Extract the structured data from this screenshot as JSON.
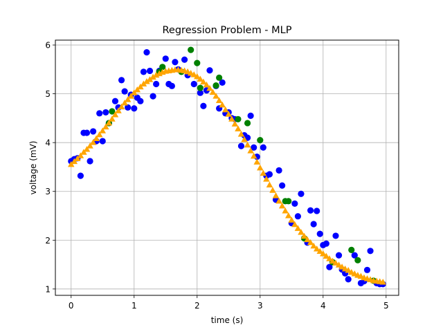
{
  "chart_data": {
    "type": "scatter",
    "title": "Regression Problem - MLP",
    "xlabel": "time (s)",
    "ylabel": "voltage (mV)",
    "xlim": [
      -0.25,
      5.2
    ],
    "ylim": [
      0.87,
      6.1
    ],
    "xticks": [
      "0",
      "1",
      "2",
      "3",
      "4",
      "5"
    ],
    "yticks": [
      "1",
      "2",
      "3",
      "4",
      "5",
      "6"
    ],
    "grid": true,
    "colors": {
      "train": "#0000ff",
      "test": "#008000",
      "prediction": "#ffa500"
    },
    "series": [
      {
        "marker": "circle",
        "color": "#0000ff",
        "points": [
          [
            0.0,
            3.62
          ],
          [
            0.05,
            3.66
          ],
          [
            0.1,
            3.68
          ],
          [
            0.15,
            3.32
          ],
          [
            0.2,
            4.2
          ],
          [
            0.25,
            4.2
          ],
          [
            0.3,
            3.62
          ],
          [
            0.35,
            4.23
          ],
          [
            0.4,
            4.03
          ],
          [
            0.45,
            4.6
          ],
          [
            0.5,
            4.03
          ],
          [
            0.55,
            4.62
          ],
          [
            0.6,
            4.4
          ],
          [
            0.7,
            4.85
          ],
          [
            0.75,
            4.72
          ],
          [
            0.8,
            5.28
          ],
          [
            0.85,
            5.05
          ],
          [
            0.9,
            4.72
          ],
          [
            0.95,
            4.98
          ],
          [
            1.0,
            4.7
          ],
          [
            1.05,
            4.92
          ],
          [
            1.1,
            4.85
          ],
          [
            1.15,
            5.45
          ],
          [
            1.2,
            5.85
          ],
          [
            1.25,
            5.47
          ],
          [
            1.3,
            4.95
          ],
          [
            1.35,
            5.2
          ],
          [
            1.4,
            5.47
          ],
          [
            1.5,
            5.72
          ],
          [
            1.55,
            5.2
          ],
          [
            1.6,
            5.16
          ],
          [
            1.65,
            5.65
          ],
          [
            1.7,
            5.5
          ],
          [
            1.8,
            5.7
          ],
          [
            1.85,
            5.38
          ],
          [
            1.95,
            5.2
          ],
          [
            2.05,
            5.02
          ],
          [
            2.1,
            4.75
          ],
          [
            2.15,
            5.07
          ],
          [
            2.2,
            5.48
          ],
          [
            2.3,
            5.16
          ],
          [
            2.35,
            4.7
          ],
          [
            2.4,
            5.23
          ],
          [
            2.45,
            4.6
          ],
          [
            2.5,
            4.62
          ],
          [
            2.55,
            4.5
          ],
          [
            2.6,
            4.48
          ],
          [
            2.7,
            3.93
          ],
          [
            2.75,
            4.15
          ],
          [
            2.8,
            4.1
          ],
          [
            2.85,
            4.55
          ],
          [
            2.9,
            3.9
          ],
          [
            2.95,
            3.71
          ],
          [
            3.05,
            3.9
          ],
          [
            3.1,
            3.32
          ],
          [
            3.15,
            3.35
          ],
          [
            3.25,
            2.83
          ],
          [
            3.3,
            3.43
          ],
          [
            3.35,
            3.12
          ],
          [
            3.5,
            2.35
          ],
          [
            3.55,
            2.75
          ],
          [
            3.6,
            2.49
          ],
          [
            3.65,
            2.95
          ],
          [
            3.75,
            1.95
          ],
          [
            3.8,
            2.61
          ],
          [
            3.85,
            2.33
          ],
          [
            3.9,
            2.6
          ],
          [
            3.95,
            2.13
          ],
          [
            4.0,
            1.9
          ],
          [
            4.05,
            1.93
          ],
          [
            4.1,
            1.45
          ],
          [
            4.2,
            2.09
          ],
          [
            4.25,
            1.69
          ],
          [
            4.3,
            1.4
          ],
          [
            4.35,
            1.32
          ],
          [
            4.4,
            1.2
          ],
          [
            4.5,
            1.69
          ],
          [
            4.6,
            1.12
          ],
          [
            4.65,
            1.16
          ],
          [
            4.7,
            1.39
          ],
          [
            4.75,
            1.78
          ],
          [
            4.85,
            1.12
          ],
          [
            4.9,
            1.1
          ],
          [
            4.95,
            1.1
          ]
        ]
      },
      {
        "marker": "circle",
        "color": "#008000",
        "points": [
          [
            0.6,
            4.4
          ],
          [
            0.65,
            4.64
          ],
          [
            1.4,
            5.45
          ],
          [
            1.45,
            5.55
          ],
          [
            1.75,
            5.45
          ],
          [
            1.9,
            5.9
          ],
          [
            2.0,
            5.63
          ],
          [
            2.05,
            5.12
          ],
          [
            2.3,
            5.17
          ],
          [
            2.35,
            5.33
          ],
          [
            2.65,
            4.48
          ],
          [
            2.8,
            4.4
          ],
          [
            3.0,
            4.05
          ],
          [
            3.4,
            2.8
          ],
          [
            3.45,
            2.8
          ],
          [
            3.7,
            2.04
          ],
          [
            4.15,
            1.55
          ],
          [
            4.45,
            1.8
          ],
          [
            4.55,
            1.59
          ],
          [
            4.8,
            1.17
          ]
        ]
      },
      {
        "marker": "triangle",
        "color": "#ffa500",
        "points": [
          [
            0.0,
            3.55
          ],
          [
            0.05,
            3.61
          ],
          [
            0.1,
            3.67
          ],
          [
            0.15,
            3.73
          ],
          [
            0.2,
            3.8
          ],
          [
            0.25,
            3.86
          ],
          [
            0.3,
            3.93
          ],
          [
            0.35,
            4.0
          ],
          [
            0.4,
            4.08
          ],
          [
            0.45,
            4.16
          ],
          [
            0.5,
            4.24
          ],
          [
            0.55,
            4.32
          ],
          [
            0.6,
            4.4
          ],
          [
            0.65,
            4.48
          ],
          [
            0.7,
            4.57
          ],
          [
            0.75,
            4.65
          ],
          [
            0.8,
            4.73
          ],
          [
            0.85,
            4.81
          ],
          [
            0.9,
            4.88
          ],
          [
            0.95,
            4.95
          ],
          [
            1.0,
            5.02
          ],
          [
            1.05,
            5.08
          ],
          [
            1.1,
            5.14
          ],
          [
            1.15,
            5.2
          ],
          [
            1.2,
            5.25
          ],
          [
            1.25,
            5.29
          ],
          [
            1.3,
            5.34
          ],
          [
            1.35,
            5.38
          ],
          [
            1.4,
            5.41
          ],
          [
            1.45,
            5.44
          ],
          [
            1.5,
            5.46
          ],
          [
            1.55,
            5.47
          ],
          [
            1.6,
            5.48
          ],
          [
            1.65,
            5.49
          ],
          [
            1.7,
            5.49
          ],
          [
            1.75,
            5.48
          ],
          [
            1.8,
            5.47
          ],
          [
            1.85,
            5.45
          ],
          [
            1.9,
            5.42
          ],
          [
            1.95,
            5.39
          ],
          [
            2.0,
            5.35
          ],
          [
            2.05,
            5.3
          ],
          [
            2.1,
            5.24
          ],
          [
            2.15,
            5.18
          ],
          [
            2.2,
            5.11
          ],
          [
            2.25,
            5.03
          ],
          [
            2.3,
            4.95
          ],
          [
            2.35,
            4.86
          ],
          [
            2.4,
            4.77
          ],
          [
            2.45,
            4.67
          ],
          [
            2.5,
            4.58
          ],
          [
            2.55,
            4.48
          ],
          [
            2.6,
            4.38
          ],
          [
            2.65,
            4.28
          ],
          [
            2.7,
            4.17
          ],
          [
            2.75,
            4.06
          ],
          [
            2.8,
            3.95
          ],
          [
            2.85,
            3.83
          ],
          [
            2.9,
            3.72
          ],
          [
            2.95,
            3.6
          ],
          [
            3.0,
            3.48
          ],
          [
            3.05,
            3.37
          ],
          [
            3.1,
            3.25
          ],
          [
            3.15,
            3.13
          ],
          [
            3.2,
            3.02
          ],
          [
            3.25,
            2.91
          ],
          [
            3.3,
            2.8
          ],
          [
            3.35,
            2.7
          ],
          [
            3.4,
            2.6
          ],
          [
            3.45,
            2.5
          ],
          [
            3.5,
            2.41
          ],
          [
            3.55,
            2.32
          ],
          [
            3.6,
            2.24
          ],
          [
            3.65,
            2.16
          ],
          [
            3.7,
            2.08
          ],
          [
            3.75,
            2.01
          ],
          [
            3.8,
            1.95
          ],
          [
            3.85,
            1.88
          ],
          [
            3.9,
            1.82
          ],
          [
            3.95,
            1.77
          ],
          [
            4.0,
            1.72
          ],
          [
            4.05,
            1.67
          ],
          [
            4.1,
            1.62
          ],
          [
            4.15,
            1.57
          ],
          [
            4.2,
            1.53
          ],
          [
            4.25,
            1.49
          ],
          [
            4.3,
            1.45
          ],
          [
            4.35,
            1.41
          ],
          [
            4.4,
            1.38
          ],
          [
            4.45,
            1.34
          ],
          [
            4.5,
            1.31
          ],
          [
            4.55,
            1.28
          ],
          [
            4.6,
            1.26
          ],
          [
            4.65,
            1.23
          ],
          [
            4.7,
            1.21
          ],
          [
            4.75,
            1.19
          ],
          [
            4.8,
            1.17
          ],
          [
            4.85,
            1.16
          ],
          [
            4.9,
            1.15
          ],
          [
            4.95,
            1.14
          ]
        ]
      }
    ]
  }
}
